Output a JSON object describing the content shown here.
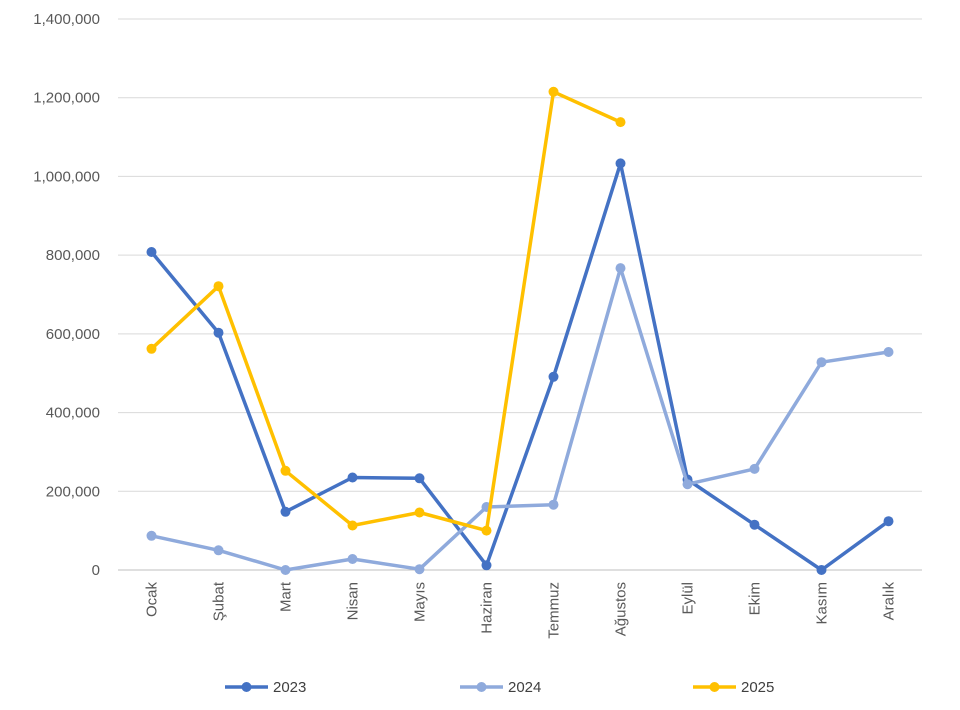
{
  "chart_data": {
    "type": "line",
    "title": "",
    "xlabel": "",
    "ylabel": "",
    "categories": [
      "Ocak",
      "Şubat",
      "Mart",
      "Nisan",
      "Mayıs",
      "Haziran",
      "Temmuz",
      "Ağustos",
      "Eylül",
      "Ekim",
      "Kasım",
      "Aralık"
    ],
    "ylim": [
      0,
      1400000
    ],
    "yticks": [
      0,
      200000,
      400000,
      600000,
      800000,
      1000000,
      1200000,
      1400000
    ],
    "ytick_labels": [
      "0",
      "200,000",
      "400,000",
      "600,000",
      "800,000",
      "1,000,000",
      "1,200,000",
      "1,400,000"
    ],
    "grid": "horizontal",
    "legend_position": "bottom",
    "series": [
      {
        "name": "2023",
        "color": "#4472c4",
        "values": [
          808000,
          603000,
          148000,
          235000,
          233000,
          12000,
          491000,
          1033000,
          230000,
          115000,
          0,
          124000
        ]
      },
      {
        "name": "2024",
        "color": "#8faadc",
        "values": [
          87000,
          50000,
          0,
          28000,
          2000,
          160000,
          166000,
          767000,
          218000,
          257000,
          528000,
          554000
        ]
      },
      {
        "name": "2025",
        "color": "#ffc000",
        "values": [
          562000,
          721000,
          252000,
          113000,
          146000,
          100000,
          1215000,
          1138000,
          null,
          null,
          null,
          null
        ]
      }
    ]
  }
}
